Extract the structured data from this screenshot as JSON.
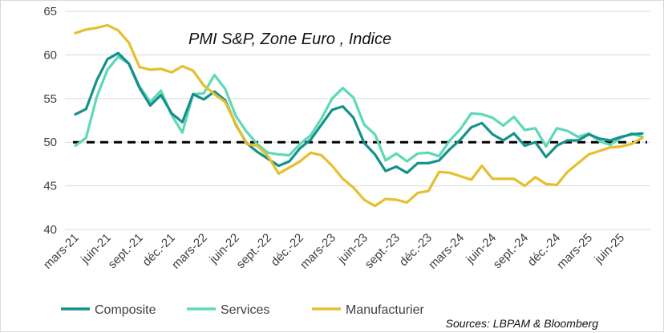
{
  "chart_data": {
    "type": "line",
    "title": "PMI S&P, Zone Euro , Indice",
    "source": "Sources: LBPAM & Bloomberg",
    "ylim": [
      40,
      65
    ],
    "yticks": [
      40,
      45,
      50,
      55,
      60,
      65
    ],
    "reference_line": {
      "value": 50,
      "style": "dashed",
      "color": "#000000"
    },
    "grid": "horizontal",
    "legend": "bottom",
    "x": [
      "mars-21",
      "avr-21",
      "mai-21",
      "juin-21",
      "juil-21",
      "août-21",
      "sept.-21",
      "oct.-21",
      "nov.-21",
      "déc.-21",
      "janv.-22",
      "févr.-22",
      "mars-22",
      "avr.-22",
      "mai-22",
      "juin-22",
      "juil.-22",
      "août-22",
      "sept.-22",
      "oct.-22",
      "nov.-22",
      "déc.-22",
      "janv.-23",
      "févr.-23",
      "mars-23",
      "avr.-23",
      "mai-23",
      "juin-23",
      "juil.-23",
      "août-23",
      "sept.-23",
      "oct.-23",
      "nov.-23",
      "déc.-23",
      "janv.-24",
      "févr.-24",
      "mars-24",
      "avr.-24",
      "mai-24",
      "juin-24",
      "juil.-24",
      "août-24",
      "sept.-24",
      "oct.-24",
      "nov.-24",
      "déc.-24",
      "janv.-25",
      "févr.-25",
      "mars-25",
      "avr.-25",
      "mai-25",
      "juin-25",
      "juil.-25",
      "août-25"
    ],
    "xticks": [
      "mars-21",
      "juin-21",
      "sept.-21",
      "déc.-21",
      "mars-22",
      "juin-22",
      "sept.-22",
      "déc.-22",
      "mars-23",
      "juin-23",
      "sept.-23",
      "déc.-23",
      "mars-24",
      "juin-24",
      "sept.-24",
      "déc.-24",
      "mars-25",
      "juin-25"
    ],
    "series": [
      {
        "name": "Composite",
        "color": "#14918a",
        "values": [
          53.2,
          53.8,
          57.1,
          59.5,
          60.2,
          59.0,
          56.2,
          54.2,
          55.4,
          53.3,
          52.3,
          55.5,
          54.9,
          55.8,
          54.8,
          52.0,
          49.9,
          48.9,
          48.1,
          47.3,
          47.8,
          49.3,
          50.3,
          52.0,
          53.7,
          54.1,
          52.8,
          49.9,
          48.6,
          46.7,
          47.2,
          46.5,
          47.6,
          47.6,
          47.9,
          49.2,
          50.3,
          51.7,
          52.2,
          50.9,
          50.2,
          51.0,
          49.6,
          50.0,
          48.3,
          49.6,
          50.2,
          50.2,
          50.9,
          50.4,
          50.2,
          50.6,
          50.9,
          51.0
        ]
      },
      {
        "name": "Services",
        "color": "#5fd8b8",
        "values": [
          49.6,
          50.5,
          55.2,
          58.3,
          59.8,
          59.0,
          56.4,
          54.6,
          55.9,
          53.1,
          51.1,
          55.5,
          55.6,
          57.7,
          56.1,
          53.0,
          51.2,
          49.8,
          48.8,
          48.6,
          48.5,
          49.8,
          50.8,
          52.7,
          55.0,
          56.2,
          55.1,
          52.0,
          50.9,
          47.9,
          48.7,
          47.8,
          48.7,
          48.8,
          48.4,
          50.2,
          51.5,
          53.3,
          53.2,
          52.8,
          51.9,
          52.9,
          51.4,
          51.6,
          49.5,
          51.6,
          51.3,
          50.6,
          51.0,
          50.1,
          49.7,
          50.5,
          51.0,
          50.6
        ]
      },
      {
        "name": "Manufacturier",
        "color": "#e6bf2e",
        "values": [
          62.5,
          62.9,
          63.1,
          63.4,
          62.8,
          61.4,
          58.6,
          58.3,
          58.4,
          58.0,
          58.7,
          58.2,
          56.5,
          55.5,
          54.6,
          52.1,
          49.8,
          49.6,
          48.4,
          46.4,
          47.1,
          47.8,
          48.8,
          48.5,
          47.3,
          45.8,
          44.8,
          43.4,
          42.7,
          43.5,
          43.4,
          43.1,
          44.2,
          44.4,
          46.6,
          46.5,
          46.1,
          45.7,
          47.3,
          45.8,
          45.8,
          45.8,
          45.0,
          46.0,
          45.2,
          45.1,
          46.6,
          47.6,
          48.6,
          49.0,
          49.4,
          49.5,
          49.8,
          50.5
        ]
      }
    ]
  }
}
